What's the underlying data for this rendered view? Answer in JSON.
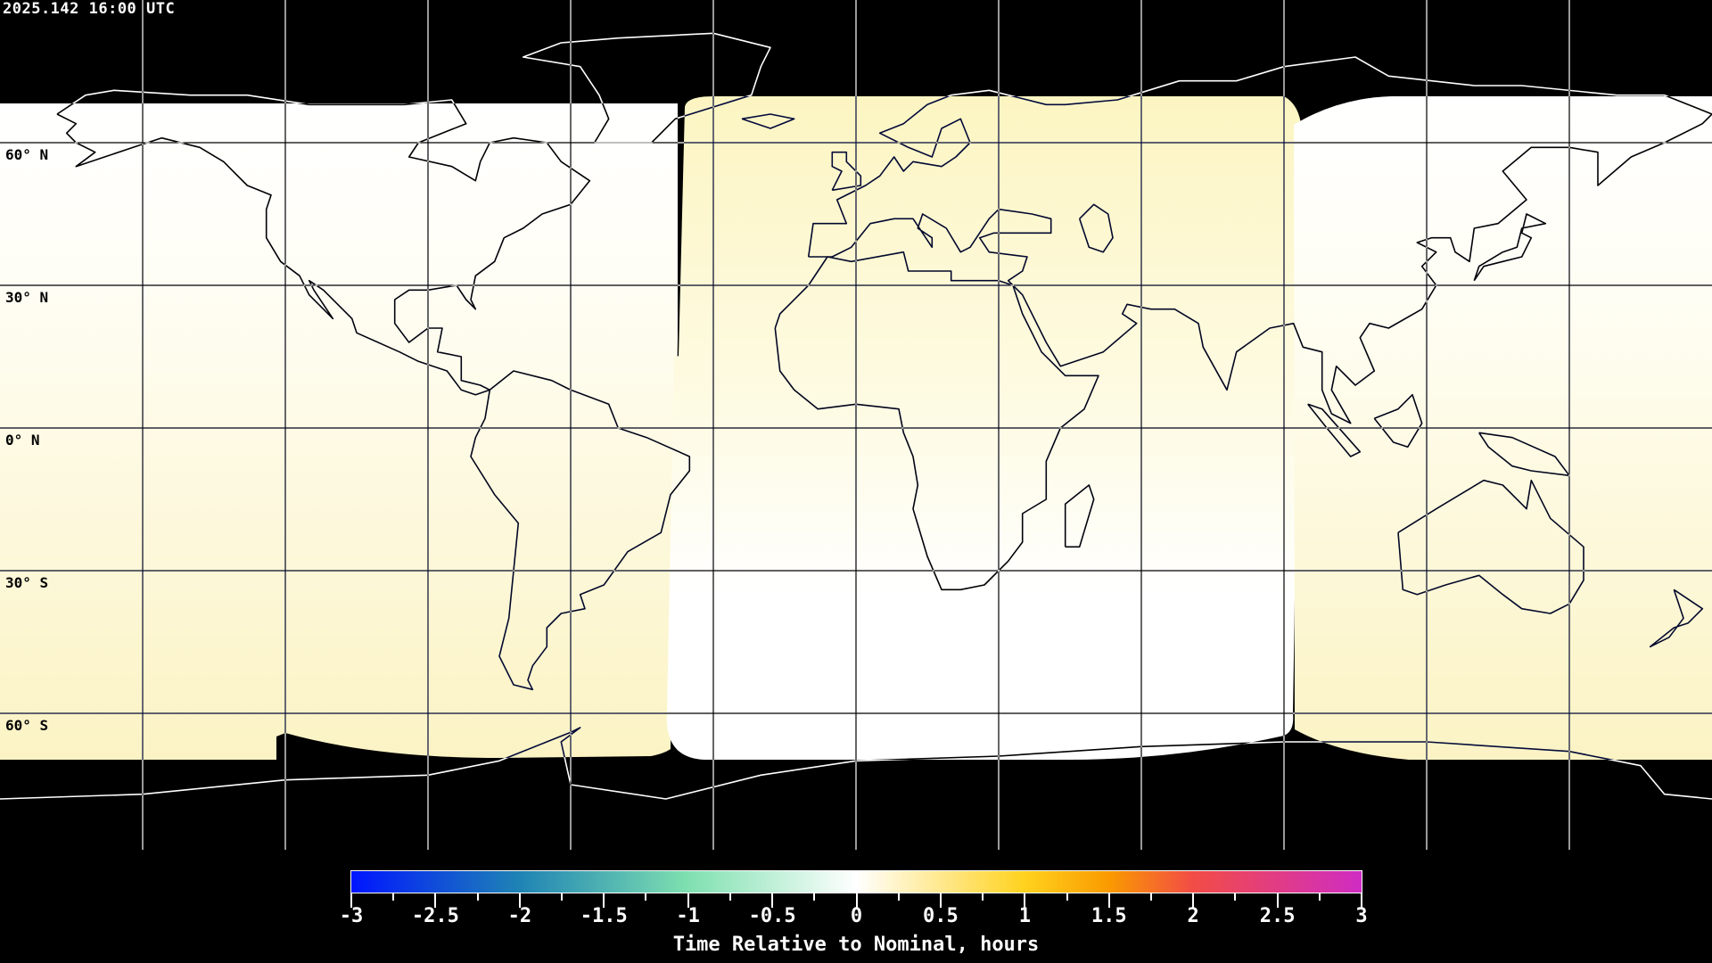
{
  "header": {
    "timestamp": "2025.142 16:00 UTC"
  },
  "map": {
    "projection": "equirectangular",
    "graticule_spacing_deg": 30,
    "lat_labels": [
      "60° N",
      "30° N",
      "0° N",
      "30° S",
      "60° S"
    ],
    "colors": {
      "background": "#000000",
      "coverage_white": "#ffffff",
      "coverage_yellow": "#fbf4c6"
    }
  },
  "colorbar": {
    "min": -3,
    "max": 3,
    "tick_labels": [
      "-3",
      "-2.5",
      "-2",
      "-1.5",
      "-1",
      "-0.5",
      "0",
      "0.5",
      "1",
      "1.5",
      "2",
      "2.5",
      "3"
    ],
    "title": "Time Relative to Nominal, hours",
    "stops": [
      {
        "value": -3,
        "color": "#0015ff"
      },
      {
        "value": -2,
        "color": "#1f84b4"
      },
      {
        "value": -1,
        "color": "#7fe0b0"
      },
      {
        "value": 0,
        "color": "#ffffff"
      },
      {
        "value": 1,
        "color": "#ffd21e"
      },
      {
        "value": 1.5,
        "color": "#fa9a00"
      },
      {
        "value": 2,
        "color": "#f24c46"
      },
      {
        "value": 3,
        "color": "#cf2cc4"
      }
    ]
  }
}
